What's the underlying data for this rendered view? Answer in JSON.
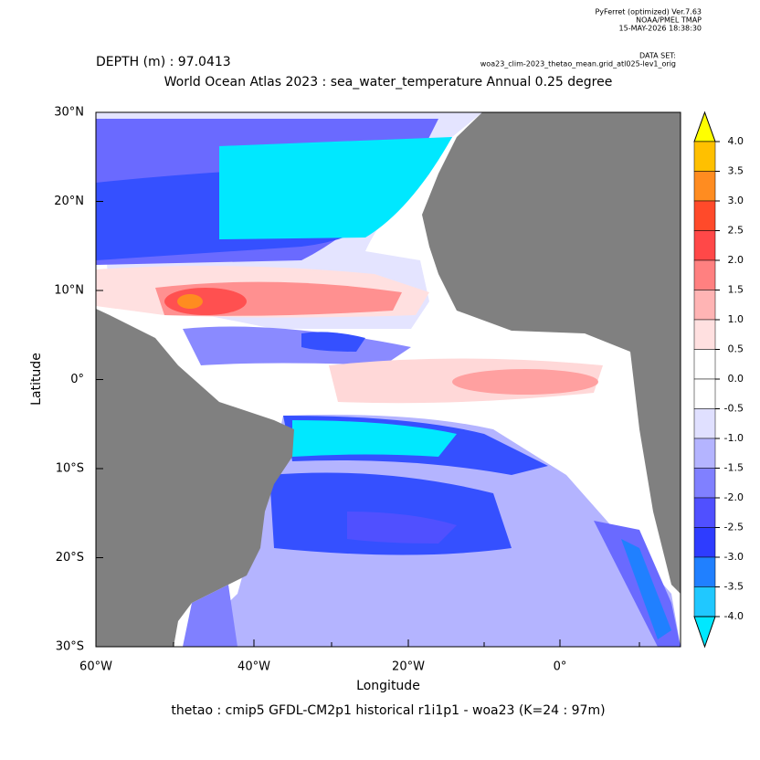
{
  "header": {
    "software": "PyFerret (optimized) Ver.7.63",
    "org": "NOAA/PMEL TMAP",
    "date": "15-MAY-2026 18:38:30",
    "dataset_label": "DATA SET:",
    "dataset": "woa23_clim-2023_thetao_mean.grid_atl025-lev1_orig",
    "depth": "DEPTH (m) : 97.0413",
    "title": "World Ocean Atlas 2023 : sea_water_temperature Annual  0.25 degree"
  },
  "map": {
    "x_label": "Longitude",
    "y_label": "Latitude",
    "xticks": [
      "60°W",
      "40°W",
      "20°W",
      "0°"
    ],
    "yticks": [
      "30°N",
      "20°N",
      "10°N",
      "0°",
      "10°S",
      "20°S",
      "30°S"
    ]
  },
  "colorbar": {
    "levels": [
      "4.0",
      "3.5",
      "3.0",
      "2.5",
      "2.0",
      "1.5",
      "1.0",
      "0.5",
      "0.0",
      "-0.5",
      "-1.0",
      "-1.5",
      "-2.0",
      "-2.5",
      "-3.0",
      "-3.5",
      "-4.0"
    ],
    "colors": [
      "#ffff00",
      "#ffc000",
      "#ff8c20",
      "#ff4a2a",
      "#ff4848",
      "#ff8080",
      "#ffb4b4",
      "#ffe0e0",
      "#ffffff",
      "#ffffff",
      "#e0e0ff",
      "#b4b4ff",
      "#8080ff",
      "#5050ff",
      "#2e3cff",
      "#2080ff",
      "#20c8ff",
      "#00e8ff"
    ]
  },
  "caption": "thetao : cmip5 GFDL-CM2p1 historical r1i1p1 - woa23  (K=24 : 97m)"
}
